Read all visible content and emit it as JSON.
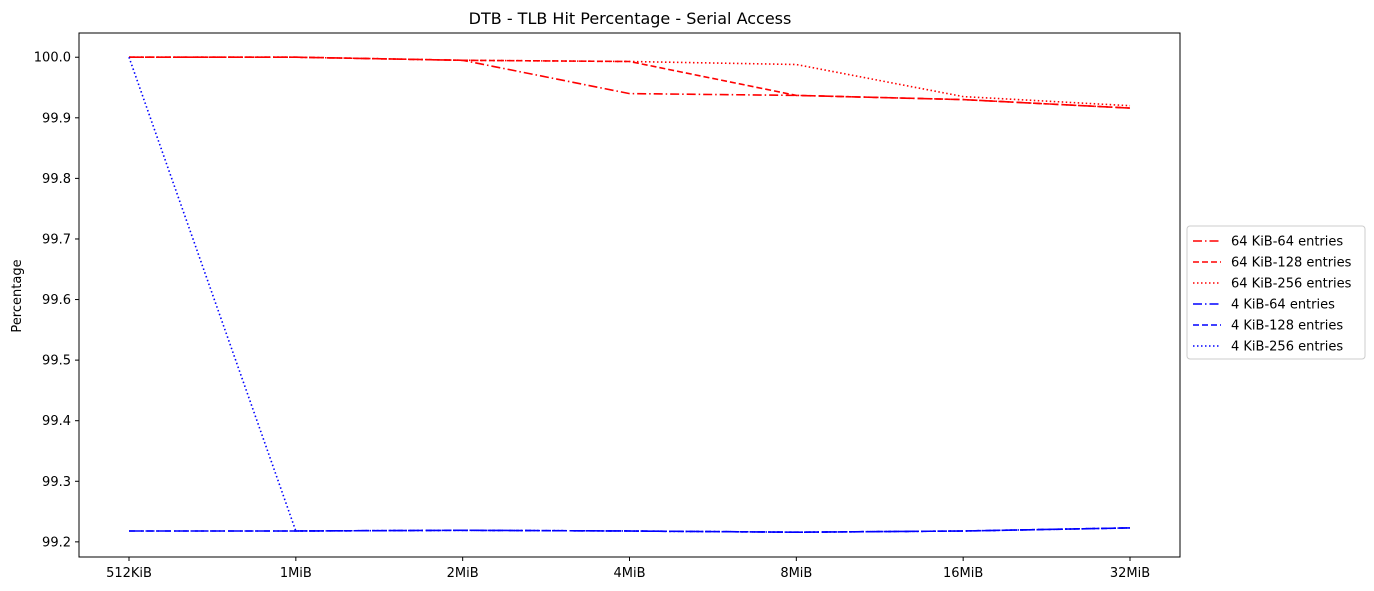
{
  "chart_data": {
    "type": "line",
    "title": "DTB - TLB Hit Percentage - Serial Access",
    "xlabel": "",
    "ylabel": "Percentage",
    "categories": [
      "512KiB",
      "1MiB",
      "2MiB",
      "4MiB",
      "8MiB",
      "16MiB",
      "32MiB"
    ],
    "yticks": [
      "99.2",
      "99.3",
      "99.4",
      "99.5",
      "99.6",
      "99.7",
      "99.8",
      "99.9",
      "100.0"
    ],
    "ylim": [
      99.175,
      100.04
    ],
    "grid": false,
    "legend_position": "center-right",
    "series": [
      {
        "name": "64 KiB-64 entries",
        "color": "#ff0000",
        "dash": "dashdot",
        "values": [
          100.0,
          100.0,
          99.995,
          99.94,
          99.937,
          99.93,
          99.916
        ]
      },
      {
        "name": "64 KiB-128 entries",
        "color": "#ff0000",
        "dash": "dashed",
        "values": [
          100.0,
          100.0,
          99.995,
          99.993,
          99.937,
          99.93,
          99.916
        ]
      },
      {
        "name": "64 KiB-256 entries",
        "color": "#ff0000",
        "dash": "dotted",
        "values": [
          100.0,
          100.0,
          99.995,
          99.993,
          99.988,
          99.935,
          99.92
        ]
      },
      {
        "name": "4 KiB-64 entries",
        "color": "#0000ff",
        "dash": "dashdot",
        "values": [
          99.218,
          99.218,
          99.219,
          99.218,
          99.216,
          99.218,
          99.223
        ]
      },
      {
        "name": "4 KiB-128 entries",
        "color": "#0000ff",
        "dash": "dashed",
        "values": [
          99.218,
          99.218,
          99.219,
          99.218,
          99.216,
          99.218,
          99.223
        ]
      },
      {
        "name": "4 KiB-256 entries",
        "color": "#0000ff",
        "dash": "dotted",
        "values": [
          100.0,
          99.218,
          99.219,
          99.218,
          99.216,
          99.218,
          99.223
        ]
      }
    ]
  }
}
